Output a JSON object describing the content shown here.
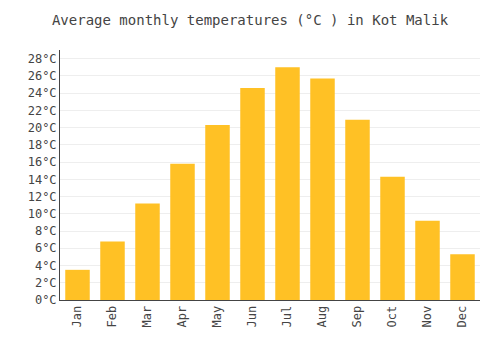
{
  "chart_data": {
    "type": "bar",
    "title": "Average monthly temperatures (°C ) in Kot Malik",
    "categories": [
      "Jan",
      "Feb",
      "Mar",
      "Apr",
      "May",
      "Jun",
      "Jul",
      "Aug",
      "Sep",
      "Oct",
      "Nov",
      "Dec"
    ],
    "values": [
      3.5,
      6.8,
      11.2,
      15.8,
      20.3,
      24.6,
      27.0,
      25.7,
      20.9,
      14.3,
      9.2,
      5.3
    ],
    "color": "#FFC125",
    "ylim": [
      0,
      29
    ],
    "yticks": [
      {
        "value": 0,
        "label": "0°C"
      },
      {
        "value": 2,
        "label": "2°C"
      },
      {
        "value": 4,
        "label": "4°C"
      },
      {
        "value": 6,
        "label": "6°C"
      },
      {
        "value": 8,
        "label": "8°C"
      },
      {
        "value": 10,
        "label": "10°C"
      },
      {
        "value": 12,
        "label": "12°C"
      },
      {
        "value": 14,
        "label": "14°C"
      },
      {
        "value": 16,
        "label": "16°C"
      },
      {
        "value": 18,
        "label": "18°C"
      },
      {
        "value": 20,
        "label": "20°C"
      },
      {
        "value": 22,
        "label": "22°C"
      },
      {
        "value": 24,
        "label": "24°C"
      },
      {
        "value": 26,
        "label": "26°C"
      },
      {
        "value": 28,
        "label": "28°C"
      }
    ],
    "grid": true
  }
}
